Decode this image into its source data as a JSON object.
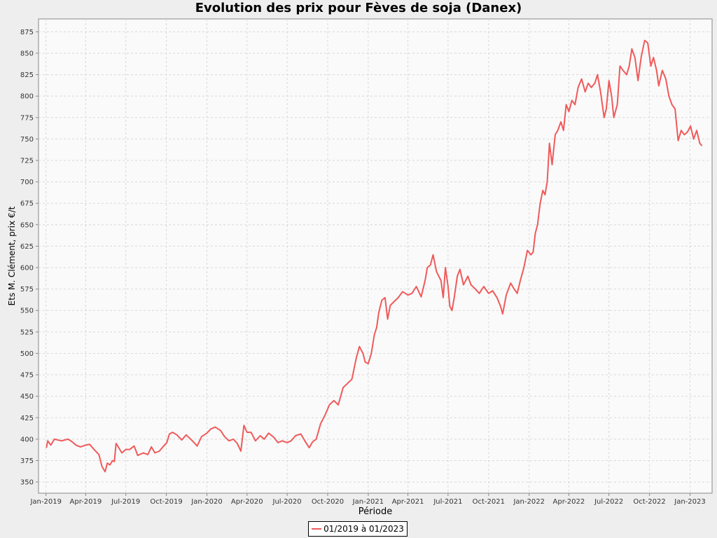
{
  "chart_data": {
    "type": "line",
    "title": "Evolution des prix pour Fèves de soja (Danex)",
    "xlabel": "Période",
    "ylabel": "Ets M. Clément, prix €/t",
    "ylim": [
      337,
      890
    ],
    "xlim": [
      "2018-12-15",
      "2023-02-20"
    ],
    "yticks": [
      350,
      375,
      400,
      425,
      450,
      475,
      500,
      525,
      550,
      575,
      600,
      625,
      650,
      675,
      700,
      725,
      750,
      775,
      800,
      825,
      850,
      875
    ],
    "xticks": [
      {
        "date": "2019-01-01",
        "label": "Jan-2019"
      },
      {
        "date": "2019-04-01",
        "label": "Apr-2019"
      },
      {
        "date": "2019-07-01",
        "label": "Jul-2019"
      },
      {
        "date": "2019-10-01",
        "label": "Oct-2019"
      },
      {
        "date": "2020-01-01",
        "label": "Jan-2020"
      },
      {
        "date": "2020-04-01",
        "label": "Apr-2020"
      },
      {
        "date": "2020-07-01",
        "label": "Jul-2020"
      },
      {
        "date": "2020-10-01",
        "label": "Oct-2020"
      },
      {
        "date": "2021-01-01",
        "label": "Jan-2021"
      },
      {
        "date": "2021-04-01",
        "label": "Apr-2021"
      },
      {
        "date": "2021-07-01",
        "label": "Jul-2021"
      },
      {
        "date": "2021-10-01",
        "label": "Oct-2021"
      },
      {
        "date": "2022-01-01",
        "label": "Jan-2022"
      },
      {
        "date": "2022-04-01",
        "label": "Apr-2022"
      },
      {
        "date": "2022-07-01",
        "label": "Jul-2022"
      },
      {
        "date": "2022-10-01",
        "label": "Oct-2022"
      },
      {
        "date": "2023-01-01",
        "label": "Jan-2023"
      }
    ],
    "grid": true,
    "legend_position": "bottom-center",
    "series": [
      {
        "name": "01/2019 à 01/2023",
        "color": "#f05a5a",
        "points": [
          [
            "2019-01-02",
            390
          ],
          [
            "2019-01-05",
            398
          ],
          [
            "2019-01-12",
            393
          ],
          [
            "2019-01-20",
            400
          ],
          [
            "2019-02-05",
            398
          ],
          [
            "2019-02-20",
            400
          ],
          [
            "2019-03-01",
            397
          ],
          [
            "2019-03-10",
            393
          ],
          [
            "2019-03-20",
            391
          ],
          [
            "2019-04-01",
            393
          ],
          [
            "2019-04-10",
            394
          ],
          [
            "2019-04-20",
            388
          ],
          [
            "2019-05-01",
            382
          ],
          [
            "2019-05-08",
            368
          ],
          [
            "2019-05-15",
            362
          ],
          [
            "2019-05-20",
            372
          ],
          [
            "2019-05-26",
            370
          ],
          [
            "2019-06-01",
            375
          ],
          [
            "2019-06-05",
            374
          ],
          [
            "2019-06-09",
            395
          ],
          [
            "2019-06-15",
            390
          ],
          [
            "2019-06-22",
            384
          ],
          [
            "2019-07-01",
            388
          ],
          [
            "2019-07-10",
            388
          ],
          [
            "2019-07-20",
            392
          ],
          [
            "2019-07-28",
            381
          ],
          [
            "2019-08-10",
            384
          ],
          [
            "2019-08-20",
            382
          ],
          [
            "2019-08-28",
            391
          ],
          [
            "2019-09-05",
            384
          ],
          [
            "2019-09-15",
            386
          ],
          [
            "2019-09-25",
            392
          ],
          [
            "2019-10-02",
            396
          ],
          [
            "2019-10-08",
            406
          ],
          [
            "2019-10-15",
            408
          ],
          [
            "2019-10-25",
            405
          ],
          [
            "2019-11-05",
            399
          ],
          [
            "2019-11-15",
            405
          ],
          [
            "2019-12-01",
            397
          ],
          [
            "2019-12-10",
            392
          ],
          [
            "2019-12-20",
            403
          ],
          [
            "2020-01-01",
            407
          ],
          [
            "2020-01-10",
            412
          ],
          [
            "2020-01-20",
            414
          ],
          [
            "2020-02-01",
            410
          ],
          [
            "2020-02-10",
            403
          ],
          [
            "2020-02-20",
            398
          ],
          [
            "2020-03-01",
            400
          ],
          [
            "2020-03-10",
            395
          ],
          [
            "2020-03-18",
            386
          ],
          [
            "2020-03-25",
            416
          ],
          [
            "2020-04-01",
            408
          ],
          [
            "2020-04-10",
            408
          ],
          [
            "2020-04-20",
            398
          ],
          [
            "2020-05-01",
            404
          ],
          [
            "2020-05-10",
            400
          ],
          [
            "2020-05-20",
            407
          ],
          [
            "2020-06-01",
            402
          ],
          [
            "2020-06-10",
            396
          ],
          [
            "2020-06-20",
            398
          ],
          [
            "2020-07-01",
            396
          ],
          [
            "2020-07-10",
            398
          ],
          [
            "2020-07-20",
            404
          ],
          [
            "2020-08-01",
            406
          ],
          [
            "2020-08-10",
            398
          ],
          [
            "2020-08-20",
            390
          ],
          [
            "2020-08-28",
            397
          ],
          [
            "2020-09-05",
            400
          ],
          [
            "2020-09-15",
            418
          ],
          [
            "2020-09-25",
            428
          ],
          [
            "2020-10-05",
            440
          ],
          [
            "2020-10-15",
            445
          ],
          [
            "2020-10-25",
            440
          ],
          [
            "2020-11-05",
            460
          ],
          [
            "2020-11-15",
            465
          ],
          [
            "2020-11-25",
            470
          ],
          [
            "2020-12-05",
            495
          ],
          [
            "2020-12-12",
            508
          ],
          [
            "2020-12-20",
            500
          ],
          [
            "2020-12-25",
            490
          ],
          [
            "2021-01-01",
            488
          ],
          [
            "2021-01-08",
            500
          ],
          [
            "2021-01-15",
            522
          ],
          [
            "2021-01-20",
            530
          ],
          [
            "2021-01-25",
            548
          ],
          [
            "2021-02-01",
            562
          ],
          [
            "2021-02-08",
            565
          ],
          [
            "2021-02-14",
            540
          ],
          [
            "2021-02-20",
            556
          ],
          [
            "2021-02-28",
            560
          ],
          [
            "2021-03-10",
            565
          ],
          [
            "2021-03-20",
            572
          ],
          [
            "2021-04-01",
            568
          ],
          [
            "2021-04-10",
            570
          ],
          [
            "2021-04-20",
            578
          ],
          [
            "2021-05-01",
            566
          ],
          [
            "2021-05-10",
            585
          ],
          [
            "2021-05-15",
            600
          ],
          [
            "2021-05-22",
            603
          ],
          [
            "2021-05-28",
            615
          ],
          [
            "2021-06-05",
            595
          ],
          [
            "2021-06-15",
            585
          ],
          [
            "2021-06-20",
            565
          ],
          [
            "2021-06-25",
            600
          ],
          [
            "2021-07-01",
            578
          ],
          [
            "2021-07-05",
            555
          ],
          [
            "2021-07-10",
            550
          ],
          [
            "2021-07-15",
            565
          ],
          [
            "2021-07-22",
            590
          ],
          [
            "2021-07-28",
            598
          ],
          [
            "2021-08-05",
            580
          ],
          [
            "2021-08-15",
            590
          ],
          [
            "2021-08-22",
            580
          ],
          [
            "2021-09-01",
            575
          ],
          [
            "2021-09-10",
            570
          ],
          [
            "2021-09-20",
            578
          ],
          [
            "2021-10-01",
            570
          ],
          [
            "2021-10-10",
            573
          ],
          [
            "2021-10-20",
            565
          ],
          [
            "2021-10-28",
            555
          ],
          [
            "2021-11-02",
            546
          ],
          [
            "2021-11-10",
            568
          ],
          [
            "2021-11-20",
            582
          ],
          [
            "2021-11-28",
            575
          ],
          [
            "2021-12-05",
            570
          ],
          [
            "2021-12-12",
            585
          ],
          [
            "2021-12-20",
            600
          ],
          [
            "2021-12-28",
            620
          ],
          [
            "2022-01-05",
            615
          ],
          [
            "2022-01-10",
            618
          ],
          [
            "2022-01-15",
            640
          ],
          [
            "2022-01-20",
            650
          ],
          [
            "2022-01-26",
            675
          ],
          [
            "2022-02-01",
            690
          ],
          [
            "2022-02-06",
            685
          ],
          [
            "2022-02-11",
            700
          ],
          [
            "2022-02-16",
            745
          ],
          [
            "2022-02-22",
            720
          ],
          [
            "2022-03-01",
            755
          ],
          [
            "2022-03-07",
            760
          ],
          [
            "2022-03-14",
            770
          ],
          [
            "2022-03-20",
            760
          ],
          [
            "2022-03-26",
            790
          ],
          [
            "2022-04-01",
            782
          ],
          [
            "2022-04-08",
            795
          ],
          [
            "2022-04-15",
            790
          ],
          [
            "2022-04-22",
            810
          ],
          [
            "2022-04-30",
            820
          ],
          [
            "2022-05-08",
            805
          ],
          [
            "2022-05-15",
            815
          ],
          [
            "2022-05-22",
            810
          ],
          [
            "2022-05-30",
            815
          ],
          [
            "2022-06-05",
            825
          ],
          [
            "2022-06-12",
            805
          ],
          [
            "2022-06-20",
            775
          ],
          [
            "2022-06-25",
            785
          ],
          [
            "2022-07-01",
            818
          ],
          [
            "2022-07-07",
            800
          ],
          [
            "2022-07-12",
            775
          ],
          [
            "2022-07-20",
            790
          ],
          [
            "2022-07-26",
            835
          ],
          [
            "2022-08-02",
            830
          ],
          [
            "2022-08-10",
            825
          ],
          [
            "2022-08-16",
            835
          ],
          [
            "2022-08-22",
            855
          ],
          [
            "2022-08-29",
            845
          ],
          [
            "2022-09-05",
            818
          ],
          [
            "2022-09-12",
            845
          ],
          [
            "2022-09-20",
            865
          ],
          [
            "2022-09-27",
            862
          ],
          [
            "2022-10-04",
            835
          ],
          [
            "2022-10-10",
            845
          ],
          [
            "2022-10-17",
            830
          ],
          [
            "2022-10-22",
            812
          ],
          [
            "2022-10-30",
            830
          ],
          [
            "2022-11-07",
            820
          ],
          [
            "2022-11-14",
            800
          ],
          [
            "2022-11-21",
            790
          ],
          [
            "2022-11-28",
            785
          ],
          [
            "2022-12-05",
            748
          ],
          [
            "2022-12-12",
            760
          ],
          [
            "2022-12-19",
            755
          ],
          [
            "2022-12-26",
            758
          ],
          [
            "2023-01-02",
            765
          ],
          [
            "2023-01-09",
            750
          ],
          [
            "2023-01-16",
            760
          ],
          [
            "2023-01-23",
            745
          ],
          [
            "2023-01-28",
            742
          ]
        ]
      }
    ]
  }
}
